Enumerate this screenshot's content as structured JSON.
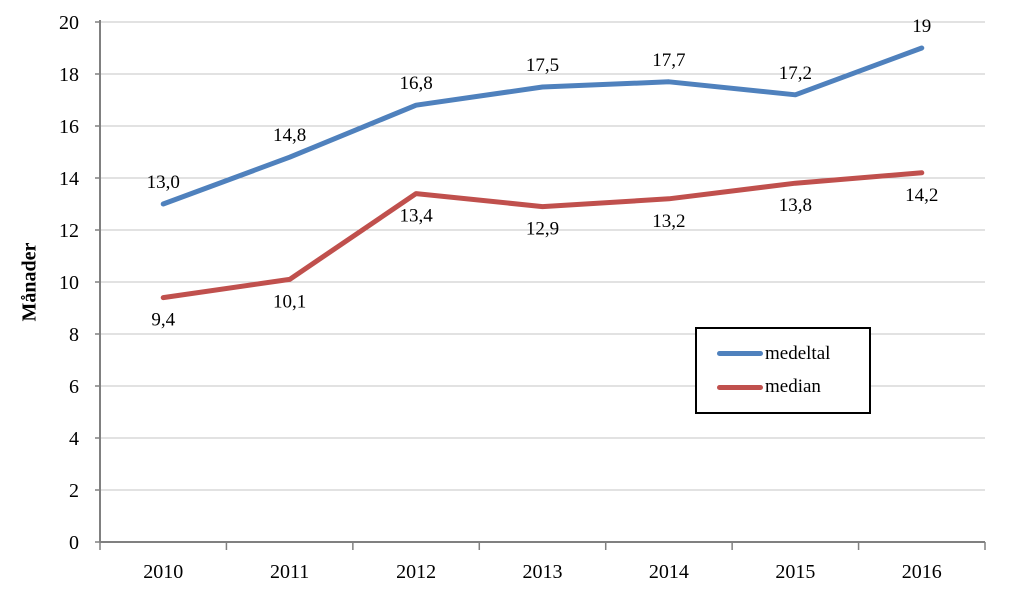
{
  "chart_data": {
    "type": "line",
    "categories": [
      "2010",
      "2011",
      "2012",
      "2013",
      "2014",
      "2015",
      "2016"
    ],
    "series": [
      {
        "name": "medeltal",
        "color": "#4F81BD",
        "values": [
          13.0,
          14.8,
          16.8,
          17.5,
          17.7,
          17.2,
          19
        ],
        "labels": [
          "13,0",
          "14,8",
          "16,8",
          "17,5",
          "17,7",
          "17,2",
          "19"
        ],
        "label_position": "above"
      },
      {
        "name": "median",
        "color": "#C0504D",
        "values": [
          9.4,
          10.1,
          13.4,
          12.9,
          13.2,
          13.8,
          14.2
        ],
        "labels": [
          "9,4",
          "10,1",
          "13,4",
          "12,9",
          "13,2",
          "13,8",
          "14,2"
        ],
        "label_position": "below"
      }
    ],
    "title": "",
    "xlabel": "",
    "ylabel": "Månader",
    "ylim": [
      0,
      20
    ],
    "ytick_step": 2,
    "grid": true,
    "grid_color": "#C6C6C6",
    "axis_color": "#808080",
    "legend_position": "inside-right"
  }
}
